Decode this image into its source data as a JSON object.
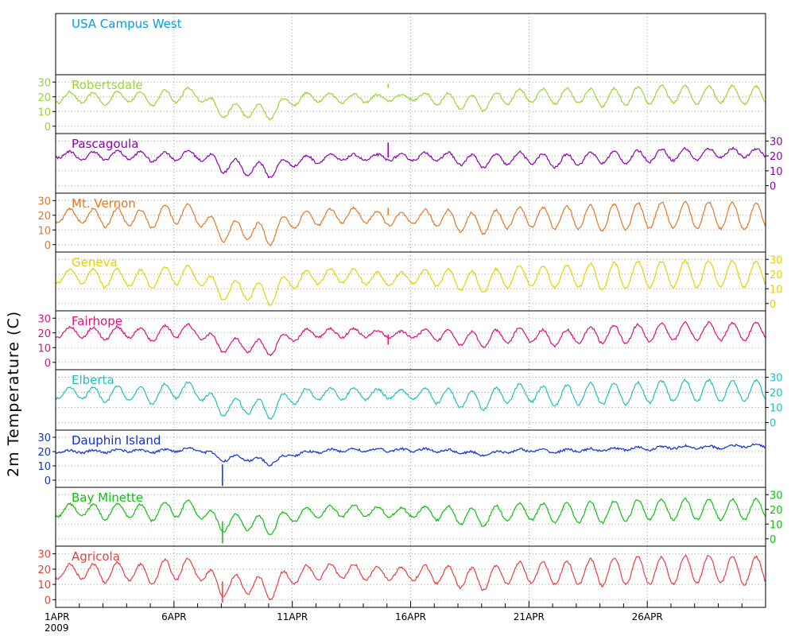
{
  "chart_data": {
    "type": "line",
    "ylabel": "2m Temperature (C)",
    "x_axis": {
      "start": "2009-04-01",
      "end": "2009-05-01",
      "tick_labels": [
        "1APR",
        "6APR",
        "11APR",
        "16APR",
        "21APR",
        "26APR"
      ],
      "year_label": "2009",
      "minor_ticks": "daily"
    },
    "grid": "dotted vertical at 5-day labels, dotted horizontal at 0/10/20/30",
    "yticks": [
      "0",
      "10",
      "20",
      "30"
    ],
    "ylim": [
      -5,
      35
    ],
    "panels": [
      {
        "name": "USA Campus West",
        "color": "#00a0e0",
        "axis_side": "none",
        "has_data": false
      },
      {
        "name": "Robertsdale",
        "color": "#99d633",
        "axis_side": "left",
        "has_data": true,
        "daily": {
          "mean": [
            19,
            20,
            18,
            21,
            18,
            21,
            22,
            10,
            11,
            9,
            18,
            20,
            19,
            19,
            19,
            20,
            19,
            17,
            15,
            20,
            21,
            20,
            21,
            19,
            20,
            21,
            22,
            21,
            22,
            21
          ],
          "amp": [
            3,
            4,
            4,
            4,
            4,
            5,
            4,
            4,
            5,
            5,
            4,
            3,
            3,
            3,
            2,
            2,
            4,
            5,
            5,
            5,
            5,
            5,
            5,
            6,
            6,
            6,
            6,
            6,
            6,
            6
          ]
        }
      },
      {
        "name": "Pascagoula",
        "color": "#9000b0",
        "axis_side": "right",
        "has_data": true,
        "daily": {
          "mean": [
            21,
            20,
            20,
            21,
            19,
            20,
            21,
            14,
            12,
            10,
            16,
            18,
            19,
            19,
            19,
            19,
            20,
            18,
            16,
            18,
            19,
            16,
            18,
            19,
            19,
            20,
            21,
            21,
            22,
            22
          ],
          "amp": [
            2,
            3,
            3,
            3,
            3,
            3,
            3,
            5,
            5,
            5,
            3,
            3,
            2,
            2,
            2,
            2,
            3,
            4,
            4,
            4,
            4,
            4,
            4,
            4,
            4,
            4,
            4,
            4,
            3,
            3
          ]
        }
      },
      {
        "name": "Mt. Vernon",
        "color": "#e07828",
        "axis_side": "left",
        "has_data": true,
        "daily": {
          "mean": [
            19,
            20,
            18,
            19,
            17,
            22,
            20,
            8,
            11,
            6,
            17,
            18,
            20,
            20,
            17,
            18,
            19,
            16,
            14,
            18,
            19,
            18,
            19,
            18,
            19,
            20,
            20,
            20,
            20,
            19
          ],
          "amp": [
            4,
            5,
            6,
            6,
            6,
            8,
            6,
            6,
            7,
            7,
            6,
            5,
            5,
            5,
            4,
            4,
            6,
            7,
            7,
            7,
            7,
            7,
            8,
            9,
            9,
            9,
            9,
            9,
            9,
            9
          ]
        }
      },
      {
        "name": "Geneva",
        "color": "#e8d000",
        "axis_side": "right",
        "has_data": true,
        "daily": {
          "mean": [
            18,
            19,
            17,
            18,
            16,
            20,
            19,
            8,
            10,
            5,
            16,
            18,
            19,
            18,
            16,
            18,
            18,
            16,
            14,
            18,
            19,
            18,
            19,
            18,
            19,
            20,
            20,
            20,
            20,
            20
          ],
          "amp": [
            4,
            5,
            6,
            6,
            6,
            7,
            6,
            6,
            7,
            7,
            6,
            5,
            5,
            5,
            4,
            4,
            6,
            7,
            7,
            7,
            7,
            7,
            8,
            9,
            9,
            9,
            9,
            9,
            9,
            9
          ]
        }
      },
      {
        "name": "Fairhope",
        "color": "#e0107a",
        "axis_side": "left",
        "has_data": true,
        "daily": {
          "mean": [
            20,
            21,
            19,
            21,
            18,
            22,
            21,
            11,
            12,
            9,
            18,
            20,
            20,
            20,
            19,
            19,
            19,
            17,
            15,
            18,
            19,
            16,
            18,
            19,
            19,
            20,
            21,
            21,
            21,
            21
          ],
          "amp": [
            3,
            4,
            4,
            4,
            4,
            5,
            4,
            4,
            5,
            5,
            4,
            3,
            3,
            3,
            2,
            2,
            4,
            5,
            5,
            5,
            5,
            5,
            5,
            6,
            6,
            6,
            6,
            6,
            6,
            6
          ]
        }
      },
      {
        "name": "Elberta",
        "color": "#20c0c0",
        "axis_side": "right",
        "has_data": true,
        "daily": {
          "mean": [
            19,
            20,
            18,
            20,
            17,
            22,
            21,
            9,
            12,
            8,
            17,
            19,
            19,
            19,
            19,
            19,
            18,
            16,
            14,
            19,
            20,
            17,
            19,
            19,
            19,
            20,
            21,
            21,
            21,
            21
          ],
          "amp": [
            3,
            4,
            5,
            5,
            5,
            6,
            5,
            5,
            6,
            6,
            5,
            4,
            4,
            4,
            3,
            3,
            5,
            6,
            6,
            6,
            6,
            6,
            7,
            7,
            7,
            7,
            7,
            7,
            7,
            7
          ]
        }
      },
      {
        "name": "Dauphin Island",
        "color": "#1030d0",
        "axis_side": "left",
        "has_data": true,
        "daily": {
          "mean": [
            20,
            20,
            20,
            21,
            20,
            21,
            22,
            15,
            16,
            12,
            18,
            20,
            21,
            21,
            21,
            21,
            21,
            20,
            18,
            20,
            21,
            20,
            21,
            21,
            22,
            22,
            23,
            23,
            23,
            24
          ],
          "amp": [
            1,
            1,
            1,
            1,
            1,
            1,
            1,
            2,
            2,
            2,
            1,
            1,
            1,
            1,
            1,
            1,
            1,
            1,
            1,
            1,
            1,
            1,
            1,
            1,
            1,
            1,
            1,
            1,
            1,
            1
          ]
        }
      },
      {
        "name": "Bay Minette",
        "color": "#10c010",
        "axis_side": "right",
        "has_data": true,
        "daily": {
          "mean": [
            19,
            20,
            18,
            20,
            17,
            21,
            20,
            10,
            12,
            8,
            16,
            18,
            19,
            19,
            18,
            18,
            18,
            16,
            14,
            18,
            19,
            17,
            18,
            18,
            19,
            20,
            20,
            20,
            20,
            20
          ],
          "amp": [
            4,
            4,
            5,
            5,
            5,
            6,
            5,
            5,
            6,
            6,
            5,
            4,
            4,
            4,
            3,
            3,
            5,
            6,
            6,
            6,
            6,
            6,
            7,
            7,
            7,
            7,
            7,
            7,
            7,
            7
          ]
        }
      },
      {
        "name": "Agricola",
        "color": "#e84040",
        "axis_side": "left",
        "has_data": true,
        "daily": {
          "mean": [
            18,
            19,
            17,
            19,
            16,
            21,
            20,
            8,
            11,
            6,
            16,
            18,
            19,
            18,
            17,
            17,
            17,
            15,
            13,
            17,
            18,
            17,
            18,
            18,
            19,
            19,
            19,
            20,
            20,
            19
          ],
          "amp": [
            4,
            5,
            6,
            6,
            6,
            8,
            6,
            6,
            7,
            7,
            6,
            5,
            5,
            5,
            4,
            4,
            6,
            7,
            7,
            7,
            7,
            7,
            8,
            9,
            9,
            9,
            9,
            9,
            9,
            9
          ]
        }
      }
    ],
    "spikes": [
      {
        "panel": "Robertsdale",
        "date": "2009-04-15.05",
        "from": 26,
        "to": 29
      },
      {
        "panel": "Pascagoula",
        "date": "2009-04-15.05",
        "from": 19,
        "to": 29
      },
      {
        "panel": "Mt. Vernon",
        "date": "2009-04-15.05",
        "from": 20,
        "to": 25
      },
      {
        "panel": "Fairhope",
        "date": "2009-04-15.05",
        "from": 19,
        "to": 12
      },
      {
        "panel": "Dauphin Island",
        "date": "2009-04-08.05",
        "from": 11,
        "to": -4
      },
      {
        "panel": "Bay Minette",
        "date": "2009-04-08.05",
        "from": 12,
        "to": -3
      },
      {
        "panel": "Agricola",
        "date": "2009-04-08.05",
        "from": 12,
        "to": -2
      }
    ]
  }
}
